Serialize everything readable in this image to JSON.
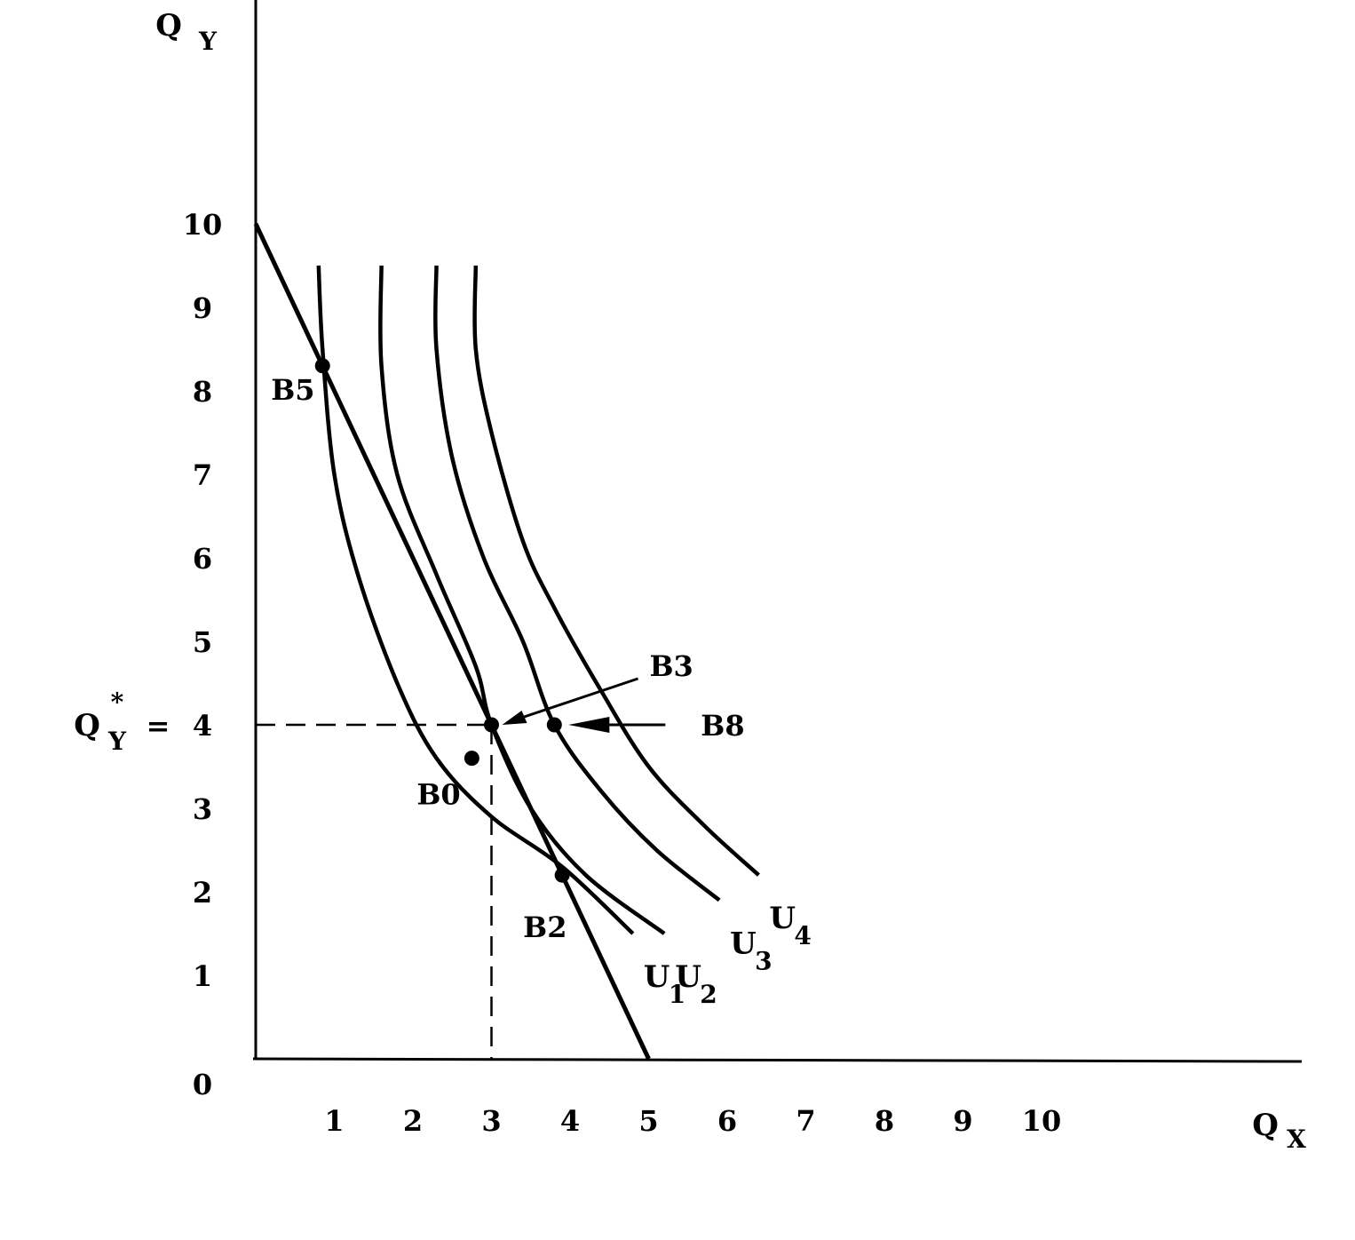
{
  "chart_data": {
    "type": "line",
    "title": "",
    "xlabel": {
      "main": "Q",
      "sub": "X"
    },
    "ylabel": {
      "main": "Q",
      "sub": "Y"
    },
    "xlim": [
      0,
      13
    ],
    "ylim": [
      0,
      12.5
    ],
    "x_ticks": [
      "1",
      "2",
      "3",
      "4",
      "5",
      "6",
      "7",
      "8",
      "9",
      "10"
    ],
    "y_ticks": [
      "0",
      "1",
      "2",
      "3",
      "5",
      "6",
      "7",
      "8",
      "9",
      "10"
    ],
    "y_star_label": {
      "main": "Q",
      "star": "*",
      "sub": "Y",
      "eq": "=",
      "value": "4"
    },
    "budget_line": {
      "name": "",
      "points": [
        [
          0,
          10
        ],
        [
          5,
          0
        ]
      ]
    },
    "dashed_guides": {
      "x": 3,
      "y": 4
    },
    "series": [
      {
        "name": "U",
        "sub": "1",
        "points": [
          [
            0.8,
            9.5
          ],
          [
            0.85,
            8.5
          ],
          [
            1.0,
            7.0
          ],
          [
            1.3,
            5.8
          ],
          [
            1.8,
            4.5
          ],
          [
            2.3,
            3.6
          ],
          [
            3.0,
            2.9
          ],
          [
            3.9,
            2.3
          ],
          [
            4.8,
            1.5
          ]
        ]
      },
      {
        "name": "U",
        "sub": "2",
        "points": [
          [
            1.6,
            9.5
          ],
          [
            1.6,
            8.3
          ],
          [
            1.8,
            7.0
          ],
          [
            2.3,
            5.8
          ],
          [
            2.8,
            4.7
          ],
          [
            3.0,
            4.0
          ],
          [
            3.5,
            3.0
          ],
          [
            4.2,
            2.2
          ],
          [
            5.2,
            1.5
          ]
        ]
      },
      {
        "name": "U",
        "sub": "3",
        "points": [
          [
            2.3,
            9.5
          ],
          [
            2.3,
            8.5
          ],
          [
            2.5,
            7.2
          ],
          [
            2.9,
            6.0
          ],
          [
            3.4,
            5.0
          ],
          [
            3.8,
            4.0
          ],
          [
            4.4,
            3.2
          ],
          [
            5.1,
            2.5
          ],
          [
            5.9,
            1.9
          ]
        ]
      },
      {
        "name": "U",
        "sub": "4",
        "points": [
          [
            2.8,
            9.5
          ],
          [
            2.8,
            8.5
          ],
          [
            3.0,
            7.5
          ],
          [
            3.4,
            6.2
          ],
          [
            3.8,
            5.4
          ],
          [
            4.4,
            4.4
          ],
          [
            5.0,
            3.5
          ],
          [
            5.7,
            2.8
          ],
          [
            6.4,
            2.2
          ]
        ]
      }
    ],
    "points": [
      {
        "label": "B5",
        "x": 0.85,
        "y": 8.3
      },
      {
        "label": "B3",
        "x": 3.0,
        "y": 4.0
      },
      {
        "label": "B8",
        "x": 3.8,
        "y": 4.0
      },
      {
        "label": "B0",
        "x": 2.75,
        "y": 3.6
      },
      {
        "label": "B2",
        "x": 3.9,
        "y": 2.2
      }
    ],
    "grid": false,
    "legend": "none"
  }
}
